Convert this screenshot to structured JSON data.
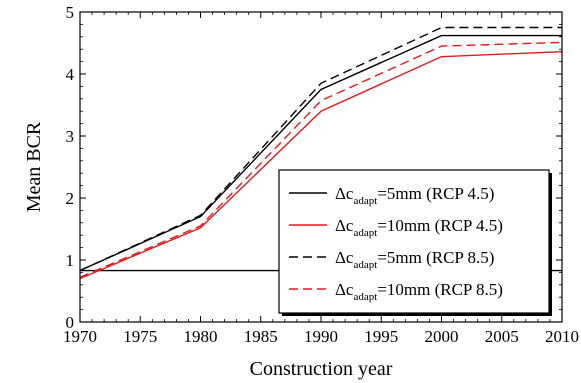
{
  "chart_data": {
    "type": "line",
    "xlabel": "Construction year",
    "ylabel": "Mean BCR",
    "xlim": [
      1970,
      2010
    ],
    "ylim": [
      0,
      5
    ],
    "x_ticks": [
      1970,
      1975,
      1980,
      1985,
      1990,
      1995,
      2000,
      2005,
      2010
    ],
    "y_ticks": [
      0,
      1,
      2,
      3,
      4,
      5
    ],
    "reference_line": {
      "y": 0.83,
      "color": "#000000"
    },
    "x": [
      1970,
      1980,
      1990,
      2000,
      2010
    ],
    "series": [
      {
        "name_prefix": "Δc",
        "name_sub": "adapt",
        "name_suffix": "=5mm (RCP 4.5)",
        "values": [
          0.83,
          1.7,
          3.75,
          4.62,
          4.62
        ],
        "color": "#000000",
        "dash": "solid"
      },
      {
        "name_prefix": "Δc",
        "name_sub": "adapt",
        "name_suffix": "=10mm (RCP 4.5)",
        "values": [
          0.7,
          1.52,
          3.4,
          4.28,
          4.36
        ],
        "color": "#e31a1c",
        "dash": "solid"
      },
      {
        "name_prefix": "Δc",
        "name_sub": "adapt",
        "name_suffix": "=5mm (RCP 8.5)",
        "values": [
          0.83,
          1.72,
          3.85,
          4.75,
          4.75
        ],
        "color": "#000000",
        "dash": "dashed"
      },
      {
        "name_prefix": "Δc",
        "name_sub": "adapt",
        "name_suffix": "=10mm (RCP 8.5)",
        "values": [
          0.72,
          1.55,
          3.57,
          4.45,
          4.51
        ],
        "color": "#e31a1c",
        "dash": "dashed"
      }
    ],
    "legend_position": "bottom-right",
    "grid": false
  }
}
